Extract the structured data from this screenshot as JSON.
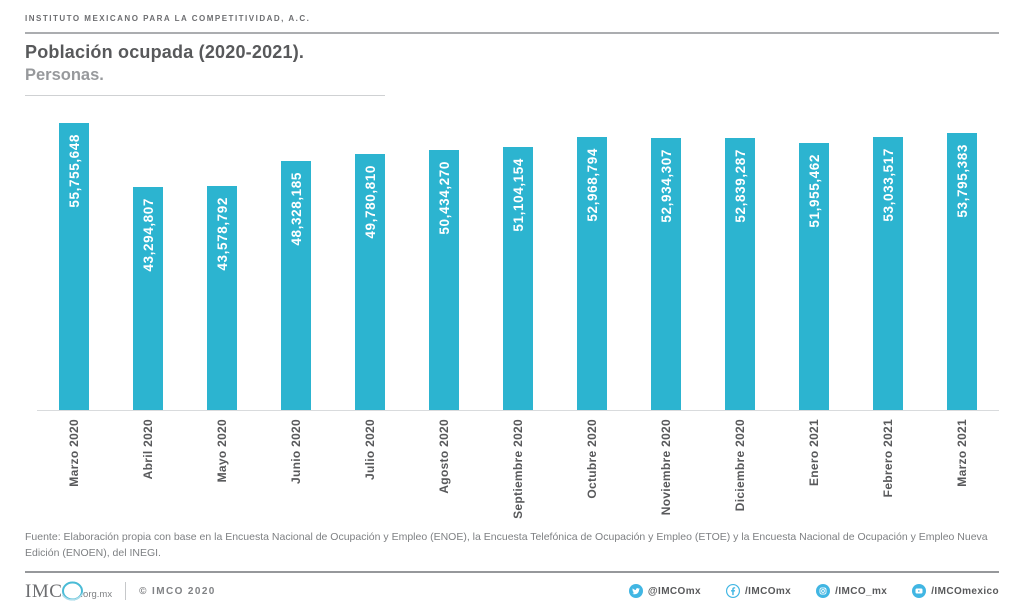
{
  "header": {
    "org_name": "INSTITUTO MEXICANO PARA LA COMPETITIVIDAD, A.C.",
    "title": "Población ocupada (2020-2021).",
    "subtitle": "Personas."
  },
  "chart_data": {
    "type": "bar",
    "title": "Población ocupada (2020-2021).",
    "ylabel": "Personas",
    "xlabel": "",
    "grid": false,
    "legend": false,
    "ylim": [
      0,
      55755648
    ],
    "bar_color": "#2CB4D0",
    "value_label_color": "#FFFFFF",
    "categories": [
      "Marzo 2020",
      "Abril 2020",
      "Mayo 2020",
      "Junio 2020",
      "Julio 2020",
      "Agosto 2020",
      "Septiembre 2020",
      "Octubre 2020",
      "Noviembre 2020",
      "Diciembre 2020",
      "Enero 2021",
      "Febrero 2021",
      "Marzo 2021"
    ],
    "values": [
      55755648,
      43294807,
      43578792,
      48328185,
      49780810,
      50434270,
      51104154,
      52968794,
      52934307,
      52839287,
      51955462,
      53033517,
      53795383
    ],
    "value_labels": [
      "55,755,648",
      "43,294,807",
      "43,578,792",
      "48,328,185",
      "49,780,810",
      "50,434,270",
      "51,104,154",
      "52,968,794",
      "52,934,307",
      "52,839,287",
      "51,955,462",
      "53,033,517",
      "53,795,383"
    ]
  },
  "source": "Fuente: Elaboración propia con base en la Encuesta Nacional de Ocupación y Empleo (ENOE), la Encuesta Telefónica de Ocupación y Empleo (ETOE) y la Encuesta Nacional de Ocupación y Empleo Nueva Edición (ENOEN), del INEGI.",
  "footer": {
    "logo_text": "IMC",
    "logo_suffix": ".org.mx",
    "copyright": "© IMCO 2020",
    "accent_color": "#41B6E3",
    "social": [
      {
        "icon": "twitter-icon",
        "label": "@IMCOmx"
      },
      {
        "icon": "facebook-icon",
        "label": "/IMCOmx"
      },
      {
        "icon": "instagram-icon",
        "label": "/IMCO_mx"
      },
      {
        "icon": "youtube-icon",
        "label": "/IMCOmexico"
      }
    ]
  }
}
